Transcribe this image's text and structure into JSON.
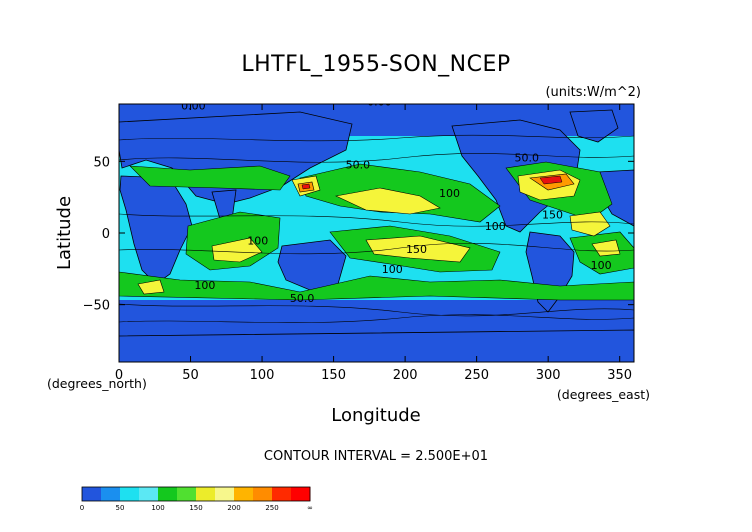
{
  "chart_data": {
    "type": "heatmap",
    "title": "LHTFL_1955-SON_NCEP",
    "units_label": "(units:W/m^2)",
    "xlabel": "Longitude",
    "ylabel": "Latitude",
    "x_unit_label": "(degrees_east)",
    "y_unit_label": "(degrees_north)",
    "xlim": [
      0,
      360
    ],
    "ylim": [
      -90,
      90
    ],
    "x_ticks": [
      0,
      50,
      100,
      150,
      200,
      250,
      300,
      350
    ],
    "y_ticks": [
      -50,
      0,
      50
    ],
    "contour_interval_text": "CONTOUR INTERVAL = 2.500E+01",
    "contour_labels": [
      {
        "text": "0.00",
        "lon": 52,
        "lat": 86
      },
      {
        "text": "0.00",
        "lon": 182,
        "lat": 89
      },
      {
        "text": "50.0",
        "lon": 167,
        "lat": 45
      },
      {
        "text": "50.0",
        "lon": 285,
        "lat": 50
      },
      {
        "text": "50.0",
        "lon": 128,
        "lat": -48
      },
      {
        "text": "100",
        "lon": 231,
        "lat": 25
      },
      {
        "text": "100",
        "lon": 263,
        "lat": 2
      },
      {
        "text": "100",
        "lon": 97,
        "lat": -8
      },
      {
        "text": "100",
        "lon": 191,
        "lat": -28
      },
      {
        "text": "100",
        "lon": 60,
        "lat": -39
      },
      {
        "text": "100",
        "lon": 337,
        "lat": -25
      },
      {
        "text": "150",
        "lon": 208,
        "lat": -14
      },
      {
        "text": "150",
        "lon": 303,
        "lat": 10
      }
    ],
    "levels": [
      0,
      50,
      100,
      150,
      200,
      250
    ],
    "colorbar": {
      "tick_labels": [
        "0",
        "50",
        "100",
        "150",
        "200",
        "250",
        "∞"
      ],
      "colors": [
        "#2255dd",
        "#1a8fef",
        "#1ee0f0",
        "#5be8f4",
        "#14c81e",
        "#50e030",
        "#ecec2a",
        "#f7f78c",
        "#ffb400",
        "#ff8c00",
        "#ff2a00",
        "#ff0000"
      ]
    },
    "field_palette": {
      "lt50": "#2255dd",
      "50to100": "#1ee0f0",
      "100to150": "#14c81e",
      "150to200": "#f5f53a",
      "200to250": "#ff9a00",
      "gt250": "#e81010",
      "land_line": "#000000"
    }
  }
}
